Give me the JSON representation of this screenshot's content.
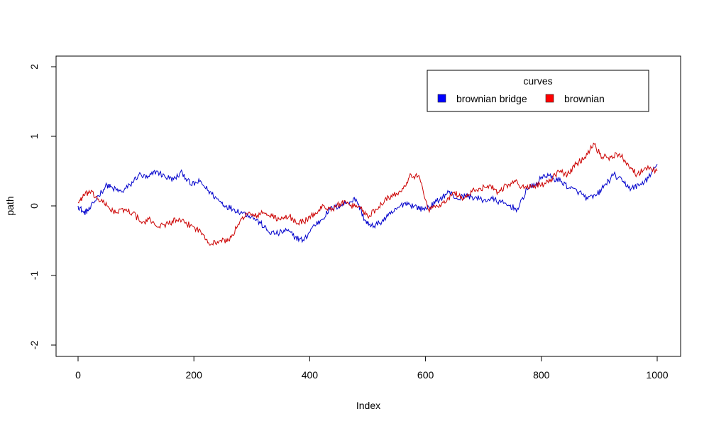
{
  "chart_data": {
    "type": "line",
    "xlabel": "Index",
    "ylabel": "path",
    "xlim": [
      0,
      1000
    ],
    "ylim": [
      -2,
      2
    ],
    "x_ticks": [
      0,
      200,
      400,
      600,
      800,
      1000
    ],
    "y_ticks": [
      -2,
      -1,
      0,
      1,
      2
    ],
    "x_tick_labels": [
      "0",
      "200",
      "400",
      "600",
      "800",
      "1000"
    ],
    "y_tick_labels": [
      "-2",
      "-1",
      "0",
      "1",
      "2"
    ],
    "grid": false,
    "legend": {
      "title": "curves",
      "position": "top-right",
      "entries": [
        "brownian bridge",
        "brownian"
      ]
    },
    "series": [
      {
        "name": "brownian bridge",
        "color": "#0000CC",
        "x": [
          0,
          10,
          20,
          35,
          50,
          60,
          75,
          90,
          105,
          120,
          135,
          150,
          165,
          180,
          195,
          210,
          225,
          240,
          255,
          270,
          285,
          300,
          315,
          330,
          345,
          360,
          375,
          390,
          405,
          420,
          435,
          450,
          465,
          480,
          495,
          505,
          520,
          535,
          550,
          565,
          580,
          595,
          610,
          625,
          640,
          655,
          670,
          685,
          700,
          715,
          730,
          745,
          760,
          775,
          790,
          805,
          820,
          835,
          850,
          865,
          880,
          895,
          910,
          925,
          940,
          955,
          970,
          985,
          1000
        ],
        "y": [
          0.0,
          -0.1,
          -0.05,
          0.15,
          0.3,
          0.25,
          0.2,
          0.3,
          0.45,
          0.4,
          0.5,
          0.42,
          0.38,
          0.48,
          0.3,
          0.35,
          0.22,
          0.1,
          0.0,
          -0.05,
          -0.1,
          -0.15,
          -0.25,
          -0.38,
          -0.4,
          -0.35,
          -0.45,
          -0.5,
          -0.3,
          -0.2,
          -0.05,
          0.0,
          0.05,
          0.1,
          -0.2,
          -0.3,
          -0.25,
          -0.15,
          -0.05,
          0.05,
          0.0,
          -0.05,
          0.0,
          0.1,
          0.2,
          0.1,
          0.15,
          0.12,
          0.08,
          0.1,
          0.05,
          0.0,
          -0.05,
          0.25,
          0.3,
          0.45,
          0.4,
          0.35,
          0.25,
          0.2,
          0.1,
          0.15,
          0.3,
          0.45,
          0.35,
          0.25,
          0.3,
          0.4,
          0.6
        ]
      },
      {
        "name": "brownian",
        "color": "#CC0000",
        "x": [
          0,
          10,
          20,
          35,
          50,
          65,
          80,
          95,
          110,
          125,
          140,
          155,
          170,
          185,
          200,
          215,
          230,
          245,
          260,
          275,
          290,
          305,
          320,
          335,
          350,
          365,
          380,
          395,
          410,
          425,
          440,
          455,
          470,
          485,
          500,
          515,
          530,
          545,
          560,
          575,
          590,
          605,
          620,
          635,
          650,
          665,
          680,
          695,
          710,
          725,
          740,
          755,
          770,
          785,
          800,
          815,
          830,
          845,
          860,
          875,
          890,
          905,
          920,
          935,
          950,
          965,
          980,
          1000
        ],
        "y": [
          0.05,
          0.15,
          0.2,
          0.1,
          0.0,
          -0.1,
          -0.05,
          -0.1,
          -0.25,
          -0.2,
          -0.3,
          -0.25,
          -0.2,
          -0.25,
          -0.3,
          -0.4,
          -0.55,
          -0.5,
          -0.5,
          -0.3,
          -0.1,
          -0.15,
          -0.1,
          -0.15,
          -0.2,
          -0.15,
          -0.25,
          -0.2,
          -0.1,
          0.0,
          -0.05,
          0.05,
          0.0,
          0.0,
          -0.15,
          -0.05,
          0.1,
          0.15,
          0.25,
          0.45,
          0.4,
          -0.05,
          0.0,
          0.05,
          0.2,
          0.1,
          0.2,
          0.25,
          0.3,
          0.2,
          0.3,
          0.35,
          0.25,
          0.3,
          0.3,
          0.35,
          0.5,
          0.45,
          0.6,
          0.7,
          0.9,
          0.7,
          0.7,
          0.75,
          0.6,
          0.45,
          0.55,
          0.5
        ]
      }
    ]
  }
}
